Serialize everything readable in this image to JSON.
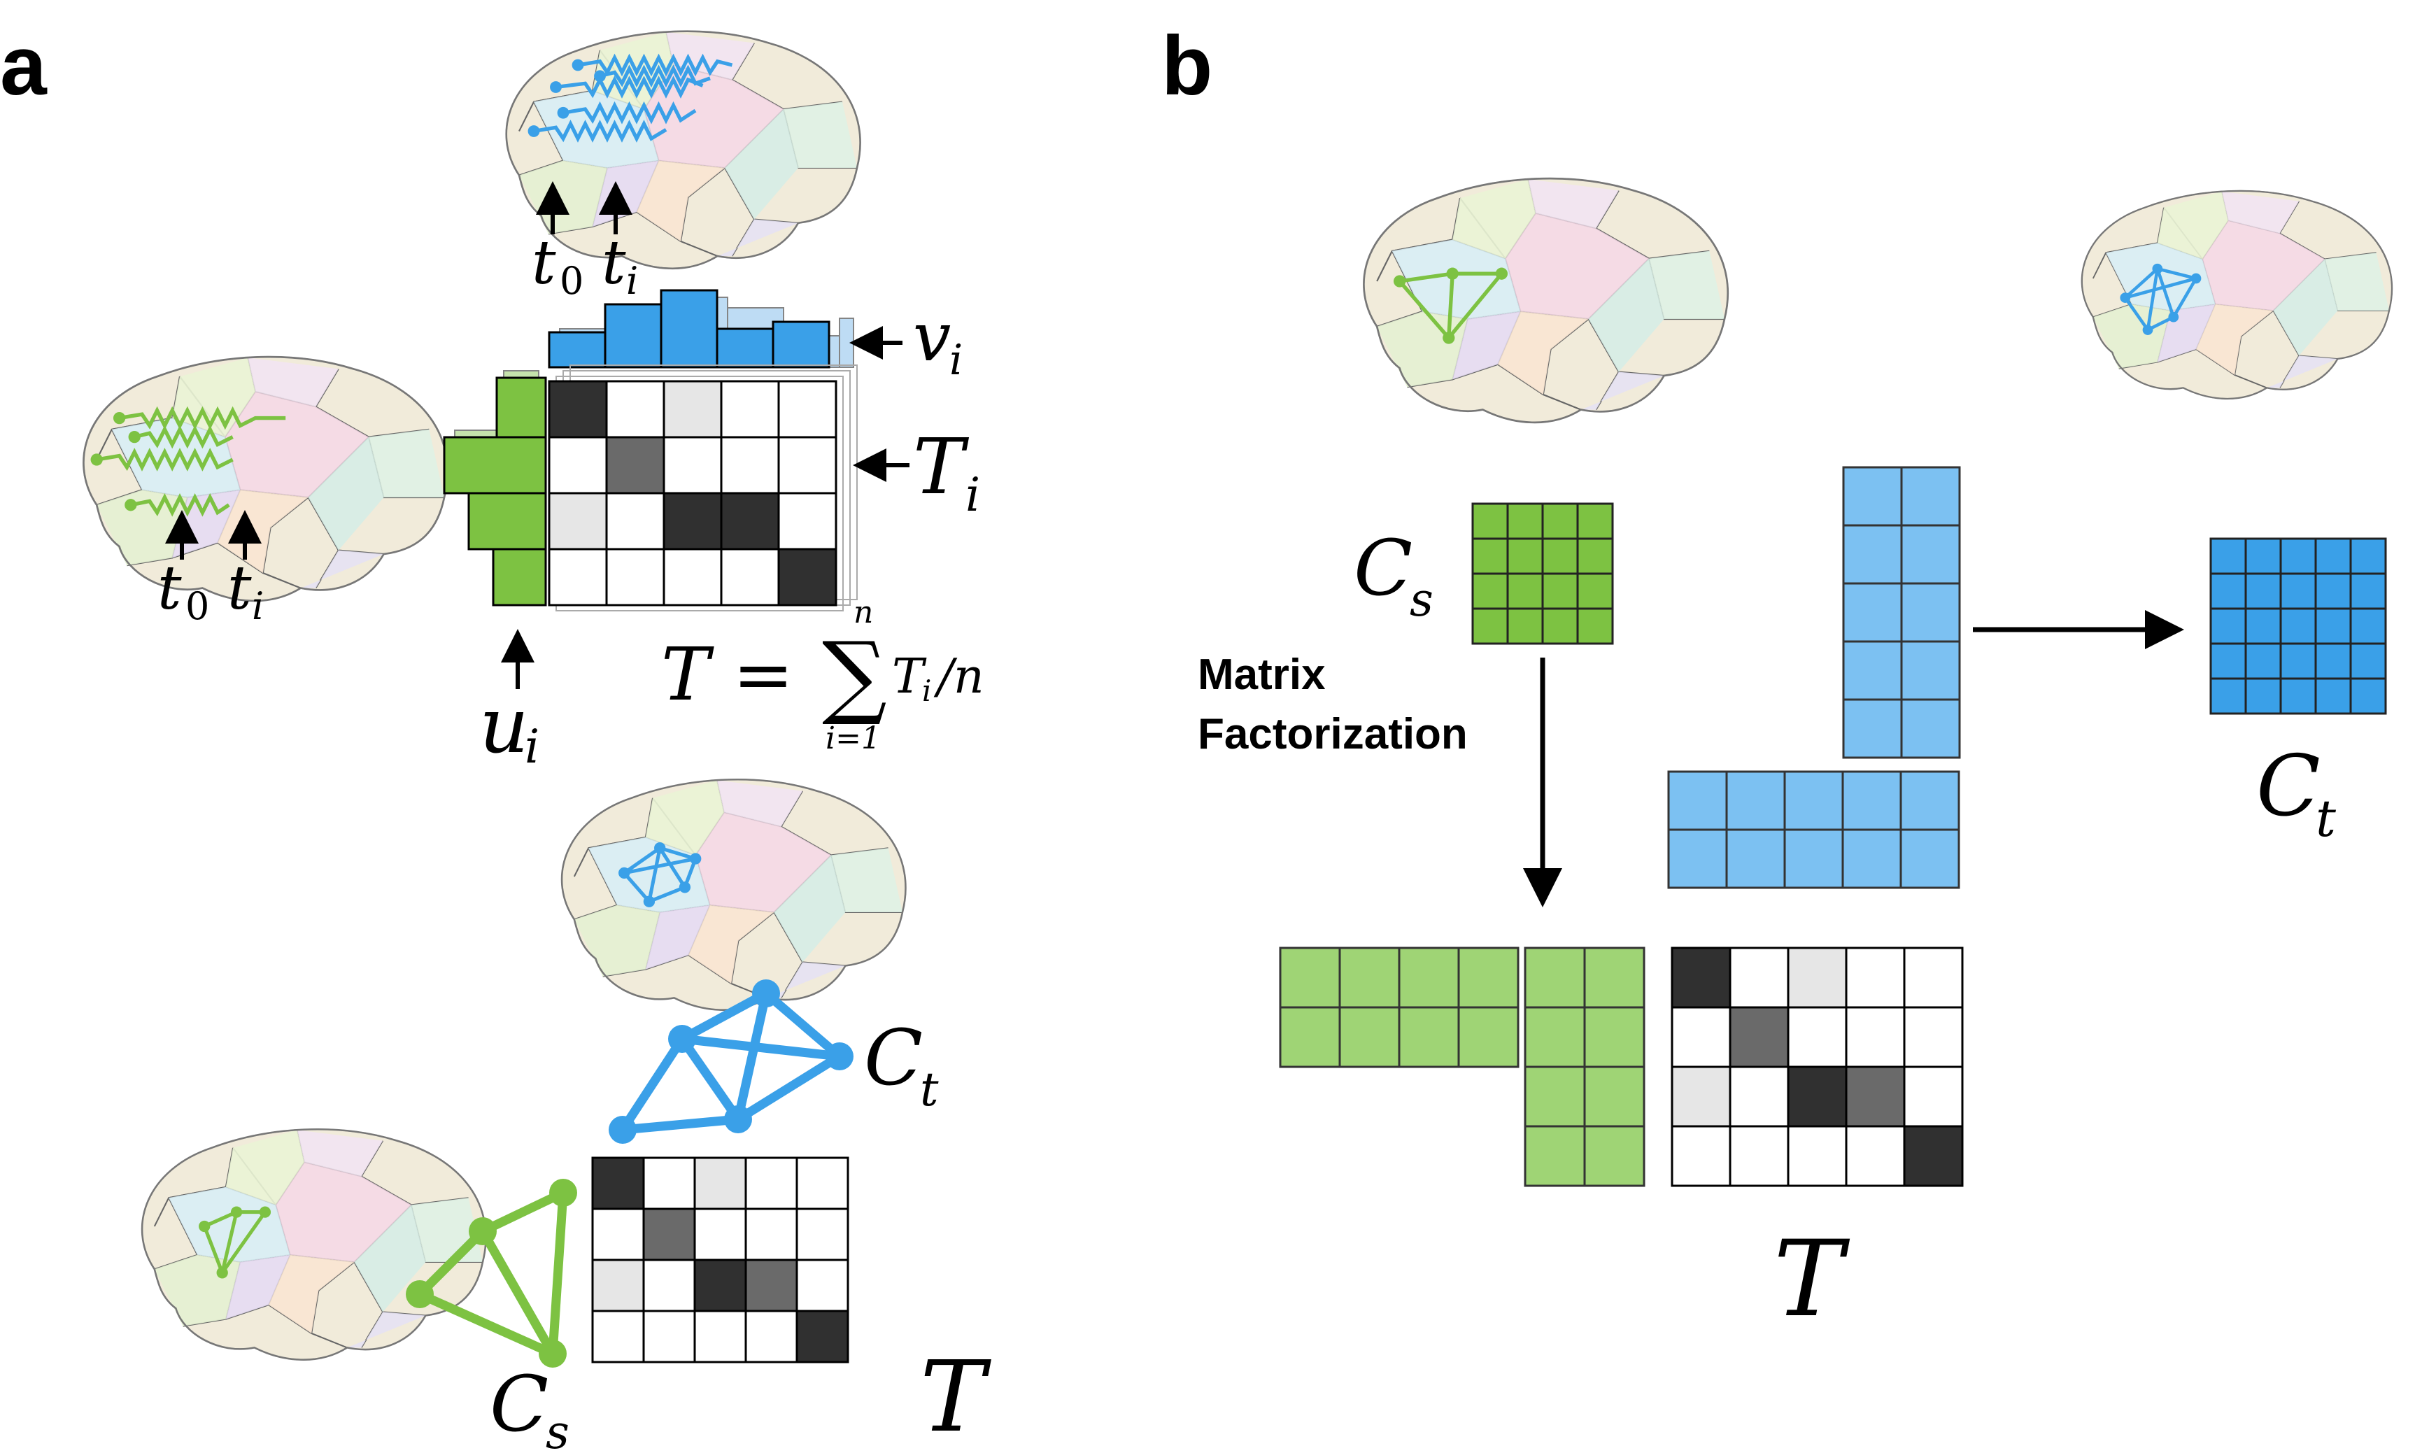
{
  "panels": {
    "a": "a",
    "b": "b"
  },
  "colors": {
    "green": "#7dc242",
    "green_light": "#9fd475",
    "blue": "#3aa0e8",
    "blue_light": "#7cc1f2",
    "dark": "#303030",
    "mid": "#6a6a6a",
    "light": "#e6e6e6"
  },
  "panel_a": {
    "t0": "t",
    "t0_sub": "0",
    "ti": "t",
    "ti_sub": "i",
    "v_i": "v",
    "v_sub": "i",
    "T_i": "T",
    "T_i_sub": "i",
    "u_i": "u",
    "u_sub": "i",
    "formula_lhs": "T =",
    "formula_sum": "∑",
    "formula_top": "n",
    "formula_bottom": "i=1",
    "formula_rhs": "T",
    "formula_rhs_sub": "i",
    "formula_rhs_tail": "/n",
    "C_t": "C",
    "C_t_sub": "t",
    "C_s": "C",
    "C_s_sub": "s",
    "T": "T"
  },
  "panel_b": {
    "C_s": "C",
    "C_s_sub": "s",
    "C_t": "C",
    "C_t_sub": "t",
    "method_line1": "Matrix",
    "method_line2": "Factorization",
    "T": "T"
  },
  "matrix_T": [
    [
      2,
      0,
      3,
      0,
      0
    ],
    [
      0,
      1,
      0,
      0,
      0
    ],
    [
      3,
      0,
      2,
      1,
      0
    ],
    [
      0,
      0,
      0,
      0,
      2
    ]
  ],
  "matrix_T_legend": "0 = white, 1 = mid gray, 2 = dark gray, 3 = light gray",
  "matrix_Ti": [
    [
      2,
      0,
      3,
      0,
      0
    ],
    [
      0,
      1,
      0,
      0,
      0
    ],
    [
      3,
      0,
      2,
      2,
      0
    ],
    [
      0,
      0,
      0,
      0,
      2
    ]
  ]
}
